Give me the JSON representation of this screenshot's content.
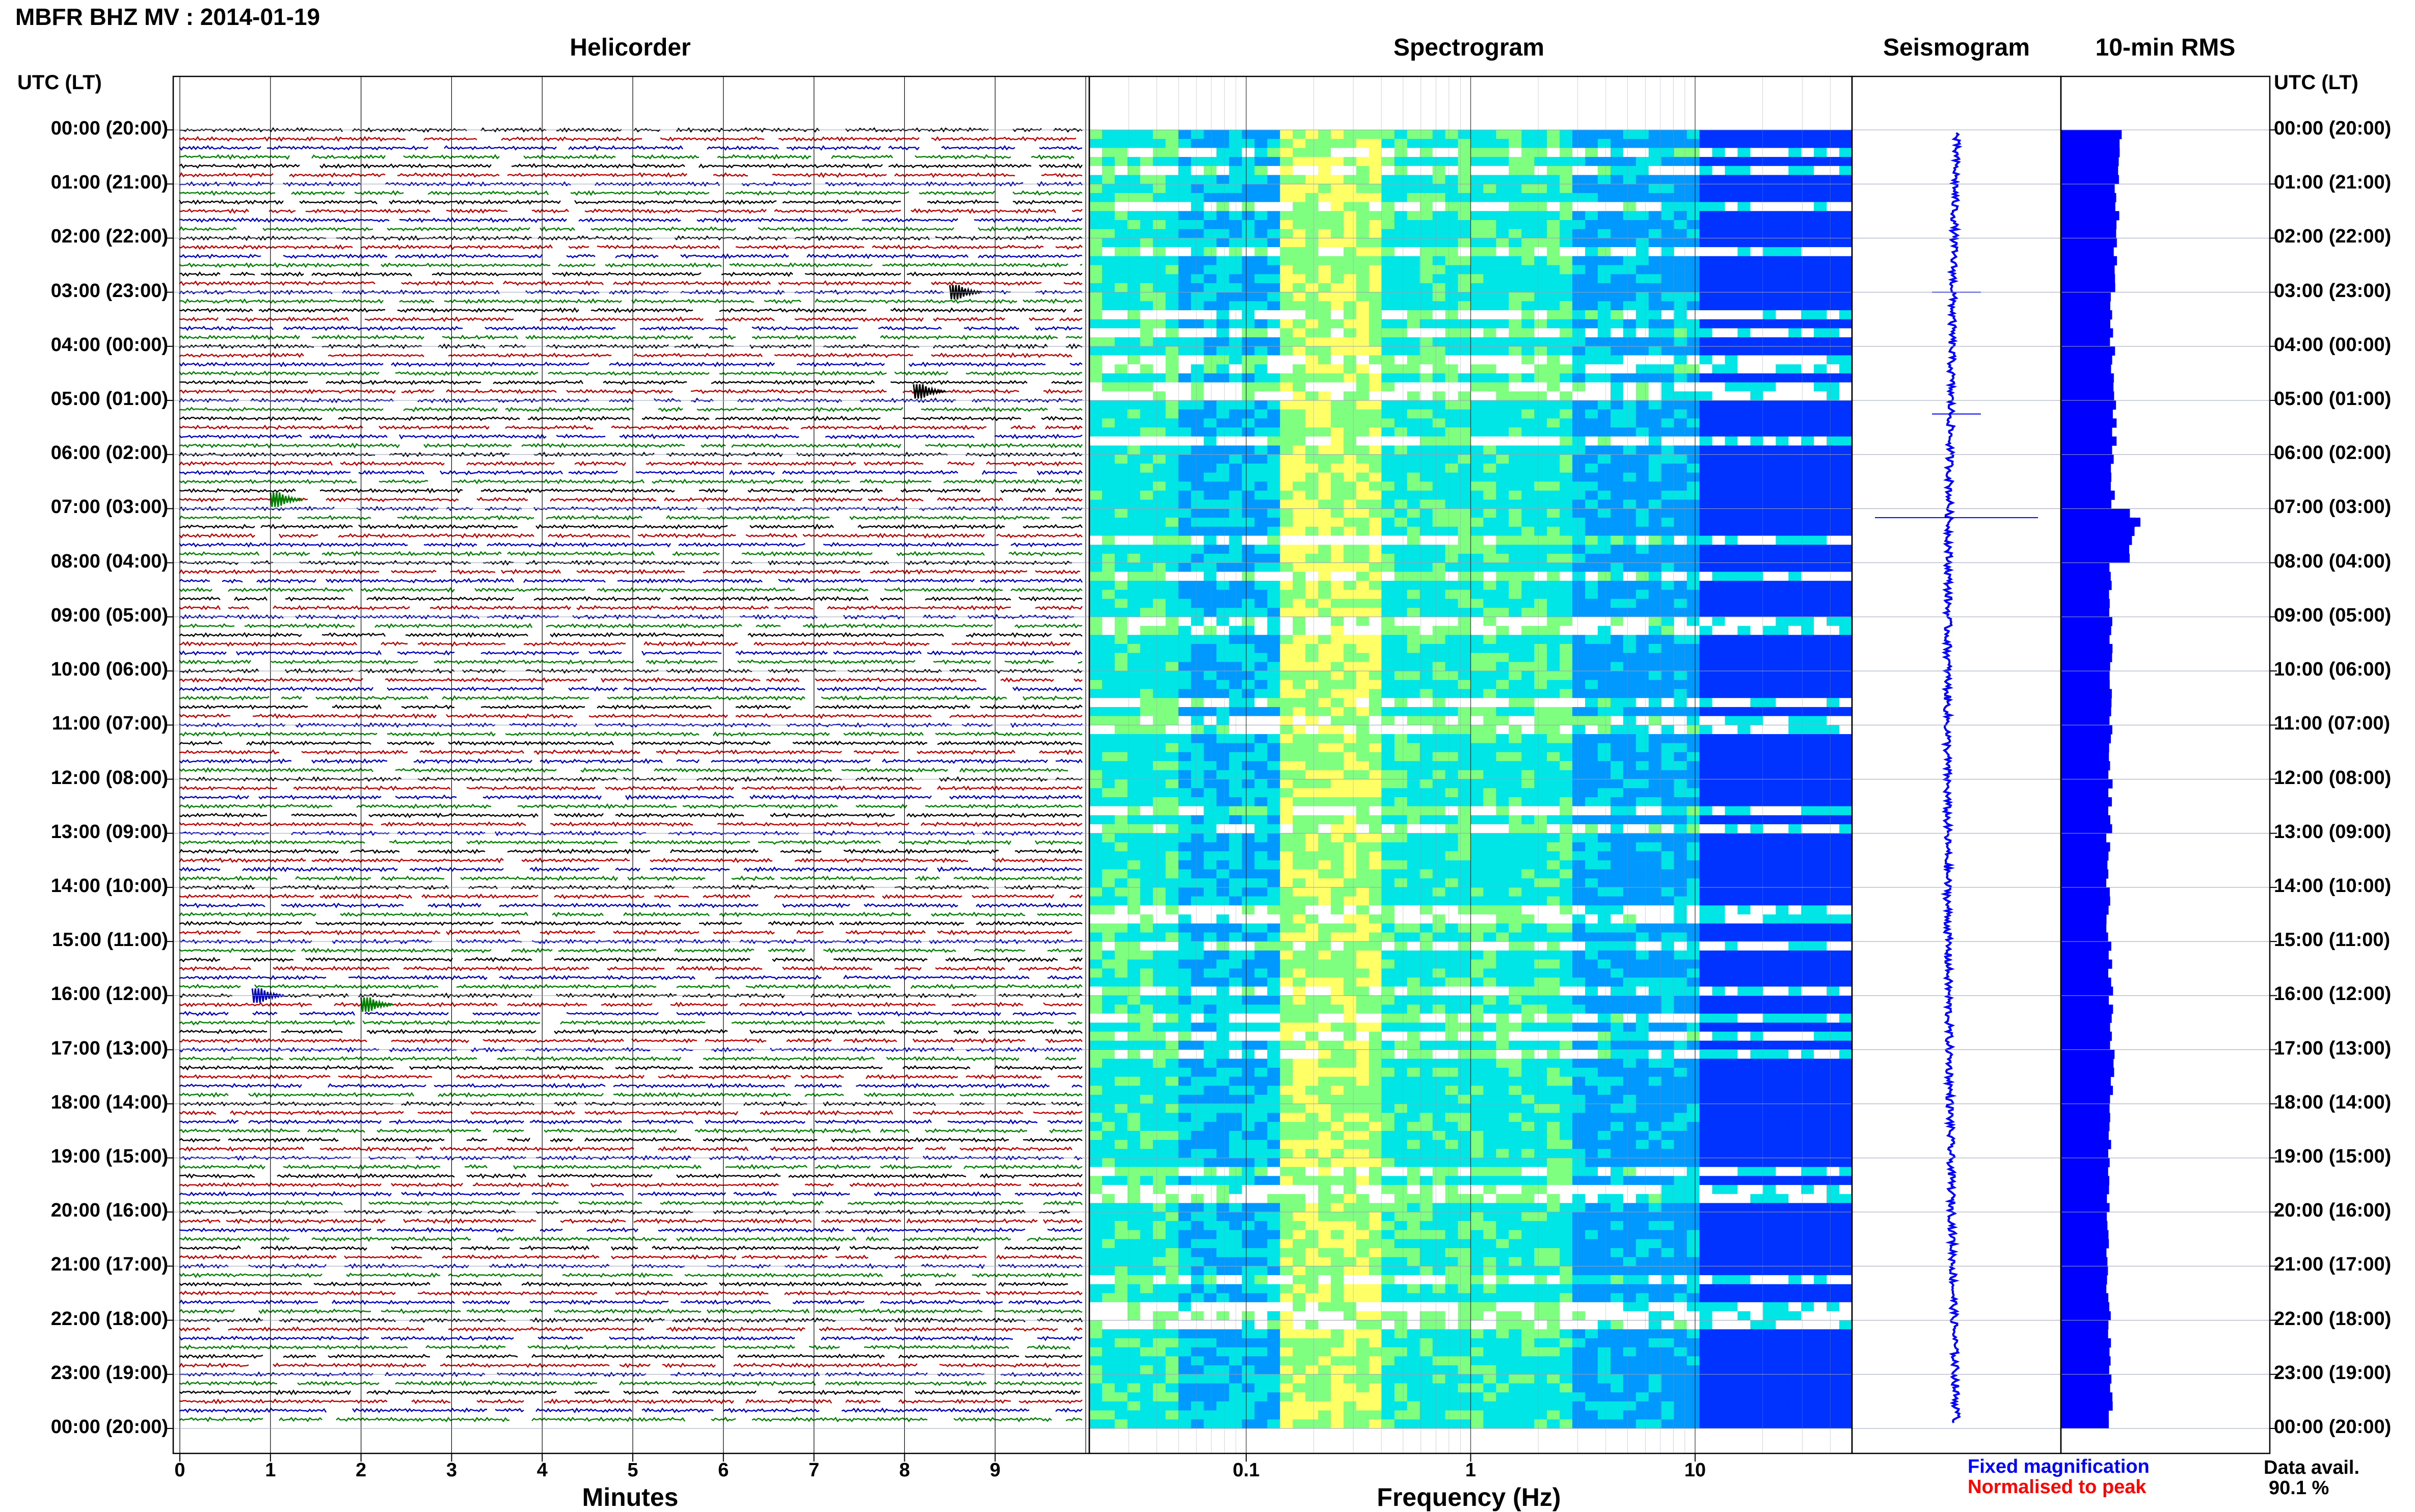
{
  "title": "MBFR BHZ MV : 2014-01-19",
  "panels": {
    "helicorder": "Helicorder",
    "spectrogram": "Spectrogram",
    "seismogram": "Seismogram",
    "rms": "10-min RMS"
  },
  "time_axis_label": "UTC (LT)",
  "time_labels": [
    "00:00 (20:00)",
    "01:00 (21:00)",
    "02:00 (22:00)",
    "03:00 (23:00)",
    "04:00 (00:00)",
    "05:00 (01:00)",
    "06:00 (02:00)",
    "07:00 (03:00)",
    "08:00 (04:00)",
    "09:00 (05:00)",
    "10:00 (06:00)",
    "11:00 (07:00)",
    "12:00 (08:00)",
    "13:00 (09:00)",
    "14:00 (10:00)",
    "15:00 (11:00)",
    "16:00 (12:00)",
    "17:00 (13:00)",
    "18:00 (14:00)",
    "19:00 (15:00)",
    "20:00 (16:00)",
    "21:00 (17:00)",
    "22:00 (18:00)",
    "23:00 (19:00)",
    "00:00 (20:00)"
  ],
  "x_axes": {
    "minutes_label": "Minutes",
    "minutes_ticks": [
      "0",
      "1",
      "2",
      "3",
      "4",
      "5",
      "6",
      "7",
      "8",
      "9"
    ],
    "frequency_label": "Frequency (Hz)",
    "frequency_ticks": [
      "0.1",
      "1",
      "10"
    ]
  },
  "legend": {
    "fixed": "Fixed magnification",
    "normalised": "Normalised to peak",
    "fixed_color": "#0000ff",
    "normalised_color": "#ff0000"
  },
  "data_availability": {
    "label": "Data avail.",
    "value": "90.1 %"
  },
  "colors": {
    "trace_cycle": [
      "#000000",
      "#c00000",
      "#0000c0",
      "#008000"
    ],
    "spectrogram_low": "#00008b",
    "spectrogram_mid": "#00bcd4",
    "spectrogram_high": "#ffff66",
    "rms_bar": "#0000ff",
    "seismogram": "#0000ff"
  },
  "chart_data": [
    {
      "type": "line",
      "title": "Helicorder",
      "xlabel": "Minutes",
      "xlim": [
        0,
        10
      ],
      "lines_per_hour": 6,
      "hours": 24,
      "events": [
        {
          "time_utc": "03:00",
          "minute": 8.5,
          "color": "black"
        },
        {
          "time_utc": "04:50",
          "minute": 8.1,
          "color": "black"
        },
        {
          "time_utc": "06:55",
          "minute": 1.0,
          "color": "green"
        },
        {
          "time_utc": "16:10",
          "minute": 2.0,
          "color": "green"
        },
        {
          "time_utc": "16:00",
          "minute": 0.8,
          "color": "blue"
        }
      ]
    },
    {
      "type": "heatmap",
      "title": "Spectrogram",
      "xlabel": "Frequency (Hz)",
      "xscale": "log",
      "xlim": [
        0.02,
        50
      ],
      "peak_energy_band_hz": [
        0.15,
        0.4
      ]
    },
    {
      "type": "line",
      "title": "Seismogram",
      "events": [
        {
          "time_utc": "03:00",
          "relative_amplitude": 0.3
        },
        {
          "time_utc": "05:15",
          "relative_amplitude": 0.3
        },
        {
          "time_utc": "07:10",
          "relative_amplitude": 1.0
        }
      ]
    },
    {
      "type": "bar",
      "title": "10-min RMS",
      "orientation": "horizontal",
      "hourly_rms_relative": [
        0.3,
        0.28,
        0.27,
        0.26,
        0.26,
        0.27,
        0.26,
        0.36,
        0.25,
        0.25,
        0.25,
        0.25,
        0.25,
        0.24,
        0.24,
        0.25,
        0.25,
        0.26,
        0.25,
        0.24,
        0.24,
        0.24,
        0.24,
        0.25
      ],
      "peaks": [
        {
          "time_utc": "07:10",
          "relative": 0.4
        }
      ]
    }
  ]
}
